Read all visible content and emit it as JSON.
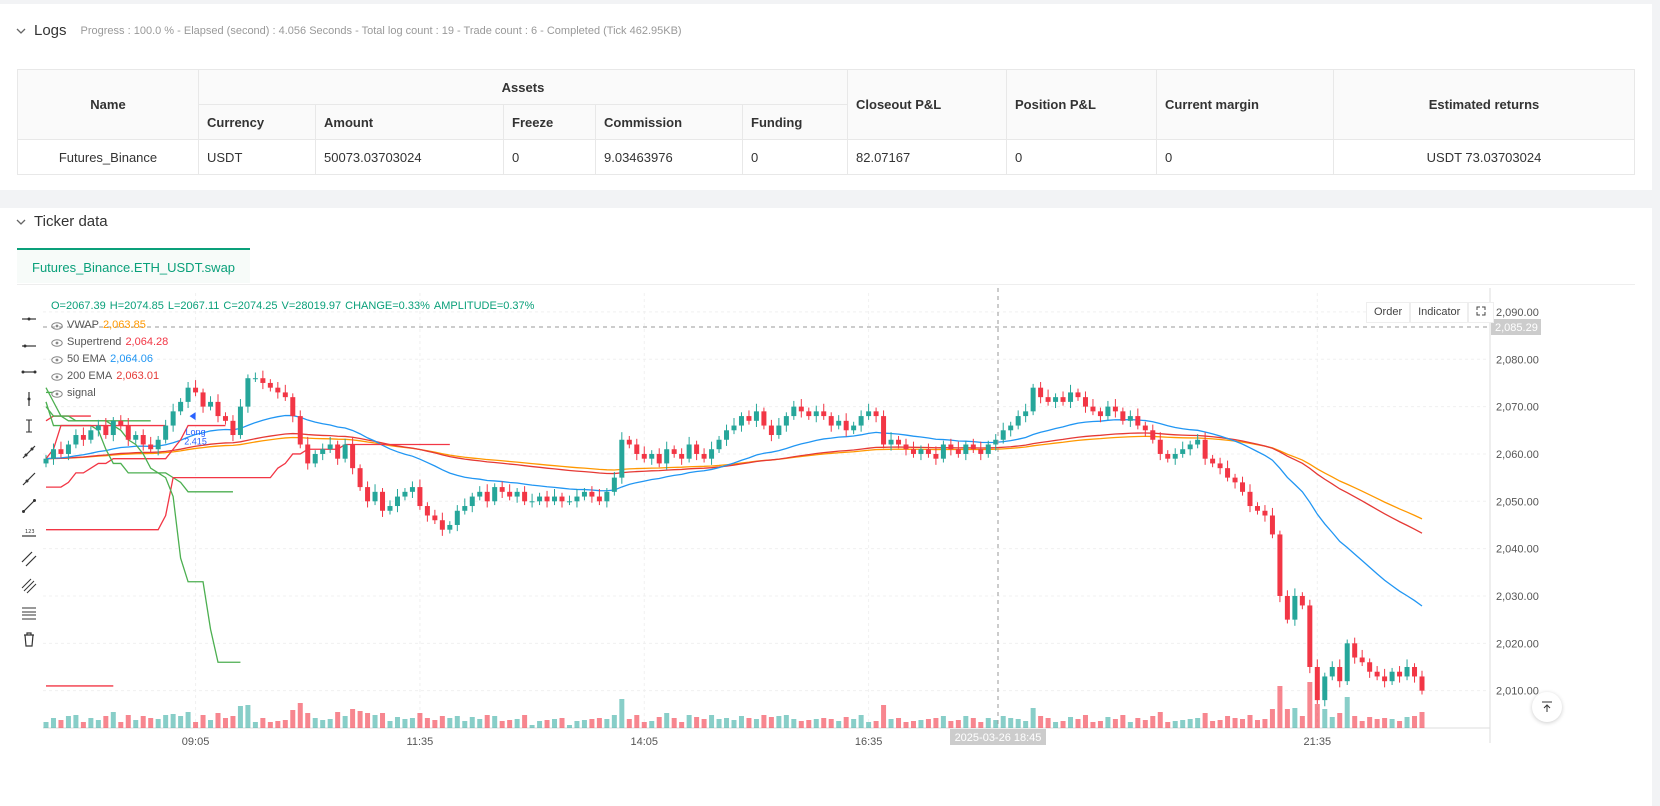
{
  "logs": {
    "title": "Logs",
    "summary": "Progress : 100.0 % - Elapsed (second) : 4.056  Seconds - Total log count : 19 - Trade count : 6 - Completed (Tick 462.95KB)",
    "table": {
      "group_header": "Assets",
      "headers": [
        "Name",
        "Currency",
        "Amount",
        "Freeze",
        "Commission",
        "Funding",
        "Closeout P&L",
        "Position P&L",
        "Current margin",
        "Estimated returns"
      ],
      "row": [
        "Futures_Binance",
        "USDT",
        "50073.03703024",
        "0",
        "9.03463976",
        "0",
        "82.07167",
        "0",
        "0",
        "USDT 73.03703024"
      ]
    }
  },
  "ticker": {
    "title": "Ticker data",
    "tab": "Futures_Binance.ETH_USDT.swap",
    "ohlc": {
      "o": "O=2067.39",
      "h": "H=2074.85",
      "l": "L=2067.11",
      "c": "C=2074.25",
      "v": "V=28019.97",
      "change": "CHANGE=0.33%",
      "amplitude": "AMPLITUDE=0.37%"
    },
    "legend": [
      {
        "name": "VWAP",
        "value": "2,063.85",
        "color": "#ff9800"
      },
      {
        "name": "Supertrend",
        "value": "2,064.28",
        "color": "#f23645"
      },
      {
        "name": "50 EMA",
        "value": "2,064.06",
        "color": "#2196f3"
      },
      {
        "name": "200 EMA",
        "value": "2,063.01",
        "color": "#e53935"
      },
      {
        "name": "signal",
        "value": "",
        "color": "#555555"
      }
    ],
    "buttons": {
      "order": "Order",
      "indicator": "Indicator"
    },
    "crosshair_price": "2,085.29",
    "crosshair_time": "2025-03-26 18:45",
    "signal_label": "Long",
    "signal_value": "2.415"
  },
  "chart_data": {
    "type": "candlestick",
    "symbol": "Futures_Binance.ETH_USDT.swap",
    "y_ticks": [
      "2,090.00",
      "2,080.00",
      "2,070.00",
      "2,060.00",
      "2,050.00",
      "2,040.00",
      "2,030.00",
      "2,020.00",
      "2,010.00"
    ],
    "y_tick_values": [
      2090,
      2080,
      2070,
      2060,
      2050,
      2040,
      2030,
      2020,
      2010
    ],
    "ylim": [
      2000,
      2094
    ],
    "x_ticks": [
      "09:05",
      "11:35",
      "14:05",
      "16:35",
      "21:35"
    ],
    "x_tick_index": [
      20,
      50,
      80,
      110,
      170
    ],
    "series_close": [
      2059,
      2061,
      2060,
      2062,
      2064,
      2063,
      2065,
      2066,
      2064,
      2067,
      2066,
      2063,
      2064,
      2062,
      2061,
      2063,
      2066,
      2069,
      2071,
      2074,
      2073,
      2070,
      2071,
      2068,
      2067,
      2064,
      2070,
      2076,
      2076,
      2075,
      2074,
      2073,
      2072,
      2068,
      2062,
      2058,
      2060,
      2061,
      2062,
      2059,
      2062,
      2057,
      2053,
      2050,
      2052,
      2048,
      2049,
      2051,
      2052,
      2053,
      2049,
      2047,
      2046,
      2044,
      2045,
      2048,
      2049,
      2051,
      2052,
      2050,
      2053,
      2052,
      2051,
      2052,
      2050,
      2050,
      2051,
      2050,
      2051,
      2050,
      2050,
      2051,
      2052,
      2051,
      2050,
      2052,
      2055,
      2063,
      2062,
      2060,
      2059,
      2060,
      2058,
      2061,
      2060,
      2059,
      2062,
      2060,
      2059,
      2061,
      2063,
      2065,
      2066,
      2068,
      2067,
      2069,
      2066,
      2064,
      2066,
      2068,
      2070,
      2069,
      2068,
      2069,
      2068,
      2066,
      2067,
      2065,
      2066,
      2068,
      2069,
      2068,
      2062,
      2063,
      2062,
      2061,
      2060,
      2061,
      2060,
      2059,
      2062,
      2061,
      2060,
      2062,
      2061,
      2060,
      2062,
      2063,
      2065,
      2066,
      2068,
      2069,
      2074,
      2072,
      2071,
      2072,
      2071,
      2073,
      2072,
      2070,
      2069,
      2068,
      2070,
      2069,
      2067,
      2068,
      2066,
      2065,
      2063,
      2060,
      2059,
      2060,
      2061,
      2062,
      2063,
      2059,
      2058,
      2057,
      2055,
      2054,
      2052,
      2049,
      2048,
      2047,
      2043,
      2030,
      2025,
      2030,
      2028,
      2015,
      2008,
      2013,
      2015,
      2012,
      2020,
      2017,
      2016,
      2014,
      2013,
      2012,
      2014,
      2013,
      2015,
      2013,
      2010
    ],
    "volume_note": "per-bar volume histogram, green up / red down"
  }
}
